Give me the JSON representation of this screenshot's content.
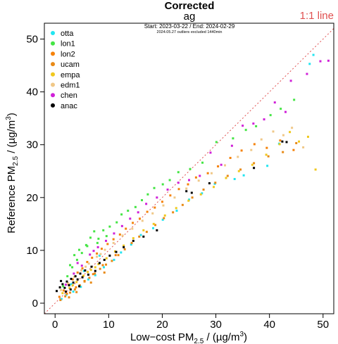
{
  "chart_data": {
    "type": "scatter",
    "title": "Corrected",
    "subtitle": "ag",
    "date_range": "Start: 2023-03-22 / End: 2024-02-29",
    "note": "2024.05.27 outliers excluded 1440min",
    "reference_line_label": "1:1 line",
    "reference_line_color": "#e05050",
    "xlabel": {
      "pre": "Low−cost PM",
      "sub": "2.5",
      "post": " / (µg/m",
      "sup": "3",
      "end": ")"
    },
    "ylabel": {
      "pre": "Reference PM",
      "sub": "2.5",
      "post": " / (µg/m",
      "sup": "3",
      "end": ")"
    },
    "xlim": [
      -2,
      52
    ],
    "ylim": [
      -2,
      53
    ],
    "xticks": [
      0,
      10,
      20,
      30,
      40,
      50
    ],
    "yticks": [
      0,
      10,
      20,
      30,
      40,
      50
    ],
    "grid": false,
    "legend_position": "top-left",
    "series": [
      {
        "name": "otta",
        "color": "#22e5f0",
        "points": [
          [
            1.2,
            0.8
          ],
          [
            2.1,
            1.6
          ],
          [
            3.4,
            2.2
          ],
          [
            4.8,
            3.1
          ],
          [
            6.2,
            4.5
          ],
          [
            7.5,
            5.3
          ],
          [
            9.1,
            6.8
          ],
          [
            11.0,
            8.2
          ],
          [
            12.3,
            9.6
          ],
          [
            14.2,
            11.1
          ],
          [
            16.0,
            12.9
          ],
          [
            18.3,
            14.2
          ],
          [
            20.1,
            15.8
          ],
          [
            22.7,
            17.5
          ],
          [
            25.0,
            19.6
          ],
          [
            27.4,
            20.8
          ],
          [
            29.8,
            22.6
          ],
          [
            33.5,
            23.5
          ],
          [
            35.2,
            24.2
          ],
          [
            39.6,
            26.0
          ],
          [
            41.8,
            30.2
          ],
          [
            47.5,
            45.3
          ],
          [
            48.2,
            47.0
          ],
          [
            5.4,
            6.1
          ],
          [
            8.3,
            9.0
          ],
          [
            3.0,
            3.6
          ]
        ]
      },
      {
        "name": "lon1",
        "color": "#44e544",
        "points": [
          [
            1.5,
            3.2
          ],
          [
            2.3,
            5.1
          ],
          [
            3.2,
            6.8
          ],
          [
            4.1,
            8.2
          ],
          [
            5.0,
            9.5
          ],
          [
            5.8,
            11.0
          ],
          [
            6.6,
            12.4
          ],
          [
            7.3,
            13.6
          ],
          [
            8.1,
            12.2
          ],
          [
            9.0,
            13.8
          ],
          [
            10.2,
            14.5
          ],
          [
            11.5,
            15.3
          ],
          [
            12.4,
            16.8
          ],
          [
            13.6,
            17.5
          ],
          [
            15.0,
            18.2
          ],
          [
            16.2,
            19.5
          ],
          [
            17.3,
            20.6
          ],
          [
            18.5,
            21.8
          ],
          [
            20.1,
            22.5
          ],
          [
            21.4,
            23.3
          ],
          [
            23.0,
            24.8
          ],
          [
            25.2,
            25.4
          ],
          [
            27.5,
            26.6
          ],
          [
            30.1,
            30.5
          ],
          [
            33.2,
            31.2
          ],
          [
            35.6,
            32.8
          ],
          [
            37.5,
            33.5
          ],
          [
            40.2,
            35.6
          ],
          [
            42.1,
            36.8
          ],
          [
            44.6,
            38.5
          ],
          [
            4.5,
            10.1
          ],
          [
            6.0,
            10.8
          ],
          [
            2.8,
            7.2
          ],
          [
            3.6,
            9.1
          ],
          [
            7.9,
            11.4
          ],
          [
            9.6,
            12.7
          ]
        ]
      },
      {
        "name": "lon2",
        "color": "#f5820a",
        "points": [
          [
            0.8,
            1.2
          ],
          [
            1.6,
            2.4
          ],
          [
            2.5,
            3.6
          ],
          [
            3.3,
            4.5
          ],
          [
            4.2,
            5.8
          ],
          [
            5.1,
            6.6
          ],
          [
            6.0,
            7.8
          ],
          [
            6.9,
            8.6
          ],
          [
            7.8,
            9.4
          ],
          [
            8.7,
            10.3
          ],
          [
            9.8,
            11.2
          ],
          [
            10.9,
            12.1
          ],
          [
            12.1,
            13.0
          ],
          [
            13.2,
            14.1
          ],
          [
            14.5,
            15.2
          ],
          [
            15.8,
            16.0
          ],
          [
            17.2,
            17.3
          ],
          [
            18.6,
            18.1
          ],
          [
            20.0,
            19.2
          ],
          [
            21.5,
            20.4
          ],
          [
            23.1,
            21.6
          ],
          [
            24.8,
            22.5
          ],
          [
            26.3,
            23.8
          ],
          [
            28.5,
            24.6
          ],
          [
            30.4,
            25.9
          ],
          [
            32.7,
            27.5
          ],
          [
            34.8,
            28.9
          ],
          [
            37.2,
            30.1
          ],
          [
            39.5,
            29.4
          ],
          [
            42.0,
            30.8
          ],
          [
            44.5,
            29.0
          ],
          [
            3.9,
            3.0
          ],
          [
            5.5,
            4.2
          ],
          [
            2.2,
            1.8
          ],
          [
            7.1,
            5.5
          ],
          [
            8.9,
            7.2
          ],
          [
            11.3,
            9.1
          ]
        ]
      },
      {
        "name": "ucam",
        "color": "#e88a16",
        "points": [
          [
            1.0,
            0.6
          ],
          [
            1.9,
            1.3
          ],
          [
            2.8,
            2.0
          ],
          [
            3.7,
            2.6
          ],
          [
            4.6,
            3.4
          ],
          [
            5.5,
            4.1
          ],
          [
            6.4,
            4.8
          ],
          [
            7.4,
            5.6
          ],
          [
            8.4,
            6.5
          ],
          [
            9.5,
            7.3
          ],
          [
            10.6,
            8.0
          ],
          [
            11.8,
            9.1
          ],
          [
            13.0,
            10.2
          ],
          [
            14.3,
            11.4
          ],
          [
            15.7,
            12.6
          ],
          [
            17.1,
            13.5
          ],
          [
            18.7,
            14.8
          ],
          [
            20.3,
            16.1
          ],
          [
            22.0,
            17.2
          ],
          [
            23.8,
            18.6
          ],
          [
            25.6,
            20.0
          ],
          [
            27.7,
            21.5
          ],
          [
            29.9,
            22.8
          ],
          [
            32.2,
            24.1
          ],
          [
            34.6,
            25.3
          ],
          [
            37.1,
            26.5
          ],
          [
            39.8,
            27.8
          ],
          [
            42.5,
            28.6
          ],
          [
            45.0,
            30.3
          ],
          [
            2.6,
            1.1
          ],
          [
            4.0,
            2.1
          ],
          [
            6.7,
            3.9
          ],
          [
            9.2,
            5.8
          ]
        ]
      },
      {
        "name": "empa",
        "color": "#f0c81e",
        "points": [
          [
            1.4,
            1.9
          ],
          [
            2.7,
            2.9
          ],
          [
            4.0,
            4.0
          ],
          [
            5.3,
            5.2
          ],
          [
            6.7,
            6.3
          ],
          [
            8.1,
            7.4
          ],
          [
            9.6,
            8.5
          ],
          [
            11.2,
            9.8
          ],
          [
            12.8,
            10.9
          ],
          [
            14.6,
            12.3
          ],
          [
            16.5,
            13.8
          ],
          [
            18.4,
            15.0
          ],
          [
            20.5,
            16.6
          ],
          [
            22.6,
            18.0
          ],
          [
            24.9,
            19.4
          ],
          [
            27.2,
            20.6
          ],
          [
            29.6,
            22.0
          ],
          [
            31.9,
            23.7
          ],
          [
            34.3,
            25.0
          ],
          [
            36.8,
            26.2
          ],
          [
            39.4,
            28.1
          ],
          [
            41.9,
            30.1
          ],
          [
            43.8,
            32.4
          ],
          [
            45.5,
            30.6
          ],
          [
            47.2,
            31.5
          ],
          [
            48.6,
            25.3
          ],
          [
            3.3,
            3.4
          ],
          [
            6.1,
            5.9
          ],
          [
            7.5,
            6.8
          ]
        ]
      },
      {
        "name": "edm1",
        "color": "#f0c888",
        "points": [
          [
            1.1,
            2.5
          ],
          [
            2.4,
            3.8
          ],
          [
            3.6,
            5.0
          ],
          [
            4.9,
            6.2
          ],
          [
            6.3,
            7.5
          ],
          [
            7.8,
            8.8
          ],
          [
            9.3,
            10.1
          ],
          [
            10.9,
            11.4
          ],
          [
            12.6,
            12.8
          ],
          [
            14.4,
            14.1
          ],
          [
            16.3,
            15.6
          ],
          [
            18.2,
            17.0
          ],
          [
            20.2,
            18.5
          ],
          [
            22.3,
            20.0
          ],
          [
            24.5,
            21.7
          ],
          [
            26.8,
            23.2
          ],
          [
            29.2,
            24.6
          ],
          [
            31.7,
            26.1
          ],
          [
            34.1,
            27.7
          ],
          [
            36.6,
            29.0
          ],
          [
            38.5,
            31.0
          ],
          [
            40.7,
            32.5
          ],
          [
            42.6,
            31.8
          ],
          [
            44.2,
            33.2
          ],
          [
            46.3,
            29.5
          ],
          [
            5.7,
            6.9
          ],
          [
            8.5,
            9.3
          ]
        ]
      },
      {
        "name": "chen",
        "color": "#d020d8",
        "points": [
          [
            2.0,
            3.5
          ],
          [
            3.5,
            5.6
          ],
          [
            5.0,
            7.1
          ],
          [
            6.5,
            9.2
          ],
          [
            8.0,
            10.6
          ],
          [
            9.5,
            11.8
          ],
          [
            11.0,
            13.2
          ],
          [
            12.5,
            14.6
          ],
          [
            14.0,
            16.0
          ],
          [
            15.5,
            17.2
          ],
          [
            17.0,
            18.8
          ],
          [
            19.0,
            20.0
          ],
          [
            21.0,
            21.5
          ],
          [
            23.0,
            22.8
          ],
          [
            25.0,
            23.3
          ],
          [
            27.0,
            24.1
          ],
          [
            29.0,
            28.5
          ],
          [
            31.0,
            26.2
          ],
          [
            33.0,
            29.8
          ],
          [
            35.0,
            33.6
          ],
          [
            37.0,
            34.0
          ],
          [
            39.0,
            34.8
          ],
          [
            41.0,
            38.0
          ],
          [
            43.0,
            36.2
          ],
          [
            44.0,
            42.1
          ],
          [
            47.0,
            43.4
          ],
          [
            49.5,
            45.8
          ],
          [
            51.0,
            45.9
          ],
          [
            4.2,
            7.6
          ],
          [
            7.2,
            9.9
          ]
        ]
      },
      {
        "name": "anac",
        "color": "#000000",
        "points": [
          [
            0.3,
            2.3
          ],
          [
            0.9,
            3.0
          ],
          [
            1.4,
            3.6
          ],
          [
            1.8,
            2.9
          ],
          [
            2.2,
            4.1
          ],
          [
            2.6,
            3.4
          ],
          [
            3.0,
            4.6
          ],
          [
            3.4,
            3.9
          ],
          [
            3.8,
            5.1
          ],
          [
            4.2,
            4.5
          ],
          [
            4.7,
            5.6
          ],
          [
            5.1,
            4.9
          ],
          [
            5.6,
            6.2
          ],
          [
            6.2,
            5.4
          ],
          [
            6.8,
            6.9
          ],
          [
            7.5,
            6.1
          ],
          [
            8.3,
            7.6
          ],
          [
            9.2,
            8.2
          ],
          [
            10.2,
            9.0
          ],
          [
            11.4,
            9.7
          ],
          [
            12.8,
            10.6
          ],
          [
            14.6,
            11.8
          ],
          [
            16.5,
            12.6
          ],
          [
            19.0,
            13.8
          ],
          [
            24.5,
            21.2
          ],
          [
            25.5,
            20.9
          ],
          [
            28.8,
            22.7
          ],
          [
            37.1,
            25.6
          ],
          [
            42.4,
            30.6
          ],
          [
            43.2,
            30.5
          ],
          [
            2.0,
            2.2
          ],
          [
            2.9,
            2.6
          ],
          [
            1.1,
            4.2
          ],
          [
            4.5,
            3.2
          ]
        ]
      }
    ]
  }
}
